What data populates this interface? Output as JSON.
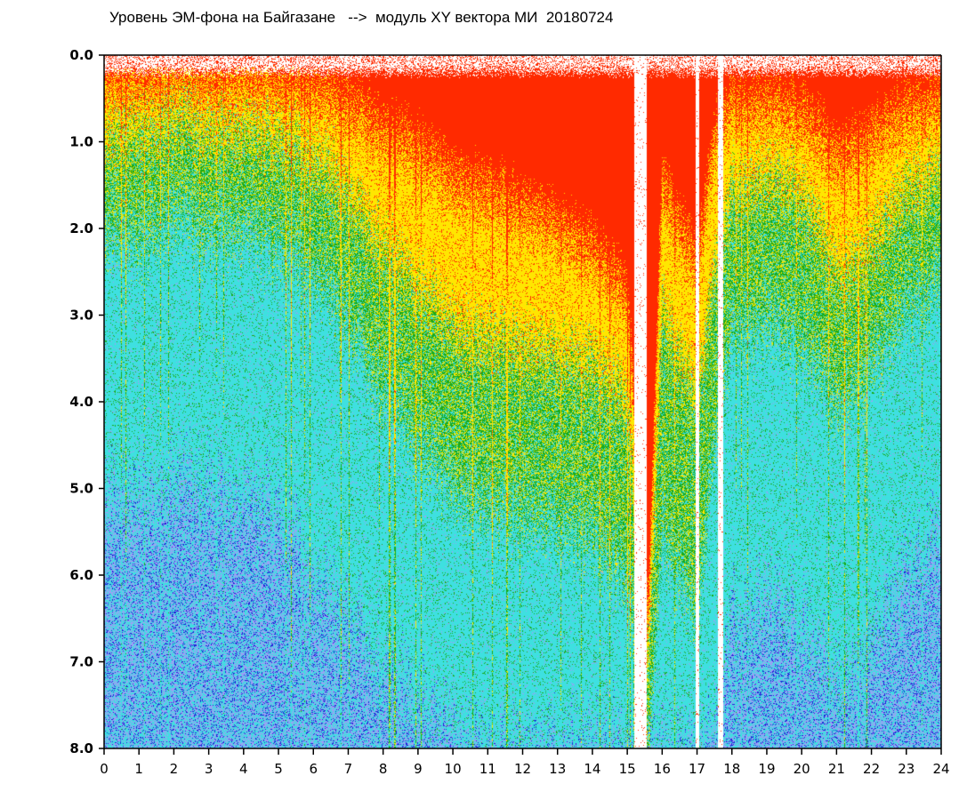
{
  "chart_data": {
    "type": "heatmap",
    "title": "Уровень ЭМ-фона на Байгазане   -->  модуль XY вектора МИ  20180724",
    "xlabel": "",
    "ylabel": "",
    "xlim": [
      0,
      24
    ],
    "ylim": [
      0,
      8
    ],
    "y_inverted": true,
    "x_ticks": [
      0,
      1,
      2,
      3,
      4,
      5,
      6,
      7,
      8,
      9,
      10,
      11,
      12,
      13,
      14,
      15,
      16,
      17,
      18,
      19,
      20,
      21,
      22,
      23,
      24
    ],
    "y_ticks": [
      "0.0",
      "1.0",
      "2.0",
      "3.0",
      "4.0",
      "5.0",
      "6.0",
      "7.0",
      "8.0"
    ],
    "grid": false,
    "color_scale": [
      "#ff2a00",
      "#ffe600",
      "#1aaa1a",
      "#3ee0e0",
      "#9aa0f5",
      "#2020d8"
    ],
    "colors": {
      "red": "#ff2a00",
      "yellow": "#ffe600",
      "green": "#1aaa1a",
      "cyan": "#3ee0e0",
      "lavender": "#9aa0f5",
      "blue": "#2020d8",
      "gap": "#ffffff"
    },
    "gaps_hours": [
      [
        15.2,
        15.55
      ],
      [
        16.95,
        17.05
      ],
      [
        17.6,
        17.75
      ]
    ],
    "activity_profile": {
      "hours": [
        0,
        0.5,
        1,
        2,
        3,
        4,
        5,
        5.5,
        6,
        7,
        8,
        9,
        10,
        11,
        12,
        13,
        14,
        15,
        15.6,
        16,
        17,
        17.5,
        18,
        19,
        20,
        21,
        22,
        23,
        24
      ],
      "red_depth": [
        0.3,
        0.3,
        0.3,
        0.25,
        0.3,
        0.3,
        0.35,
        0.4,
        0.4,
        0.6,
        0.9,
        1.1,
        1.5,
        1.6,
        1.8,
        2.0,
        2.3,
        2.8,
        6.5,
        1.5,
        2.5,
        1.0,
        0.6,
        0.6,
        0.7,
        1.2,
        1.0,
        0.7,
        0.6
      ],
      "yellow_depth": [
        0.9,
        0.9,
        0.9,
        0.8,
        0.9,
        0.9,
        1.0,
        1.1,
        1.2,
        1.6,
        2.2,
        2.7,
        3.2,
        3.3,
        3.4,
        3.5,
        3.6,
        4.0,
        7.0,
        3.0,
        4.0,
        2.5,
        1.6,
        1.4,
        1.6,
        2.5,
        2.2,
        1.6,
        1.4
      ],
      "green_depth": [
        2.0,
        2.0,
        2.1,
        1.9,
        2.0,
        2.0,
        2.2,
        2.4,
        2.5,
        3.0,
        3.8,
        4.5,
        5.0,
        5.2,
        5.3,
        5.4,
        5.6,
        6.0,
        8.0,
        5.5,
        6.5,
        4.5,
        3.2,
        3.0,
        3.3,
        4.0,
        3.6,
        3.0,
        2.6
      ],
      "cyan_depth": [
        5.0,
        5.0,
        5.1,
        5.0,
        5.0,
        5.1,
        5.3,
        5.6,
        6.0,
        6.4,
        7.0,
        7.5,
        7.8,
        8.0,
        8.0,
        8.0,
        8.0,
        8.0,
        8.0,
        8.0,
        8.0,
        7.8,
        6.5,
        6.2,
        6.6,
        7.2,
        6.8,
        6.0,
        5.6
      ]
    }
  }
}
